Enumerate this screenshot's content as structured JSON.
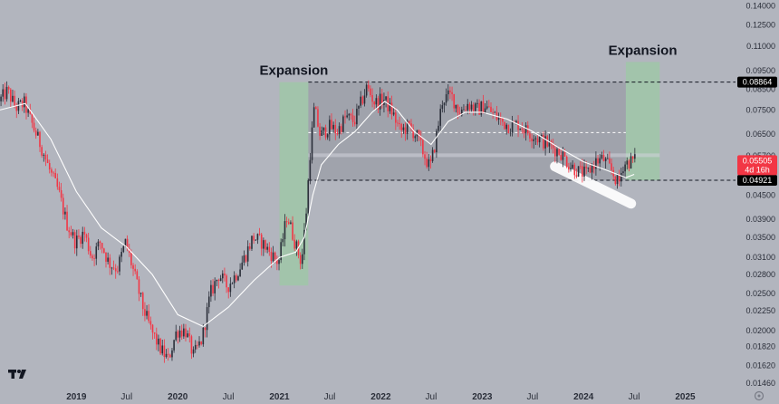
{
  "chart_data": {
    "type": "candlestick",
    "y_axis": {
      "scale": "log",
      "position": "right",
      "ylim": [
        0.0142,
        0.145
      ],
      "ticks": [
        "0.14000",
        "0.12500",
        "0.11000",
        "0.09500",
        "0.08500",
        "0.07500",
        "0.06500",
        "0.05700",
        "0.04500",
        "0.03900",
        "0.03500",
        "0.03100",
        "0.02800",
        "0.02500",
        "0.02250",
        "0.02000",
        "0.01820",
        "0.01620",
        "0.01460"
      ]
    },
    "x_axis": {
      "range": [
        "2018-04-01",
        "2025-07-01"
      ],
      "ticks": [
        {
          "date": "2019-01-01",
          "label": "2019",
          "year": true
        },
        {
          "date": "2019-07-01",
          "label": "Jul",
          "year": false
        },
        {
          "date": "2020-01-01",
          "label": "2020",
          "year": true
        },
        {
          "date": "2020-07-01",
          "label": "Jul",
          "year": false
        },
        {
          "date": "2021-01-01",
          "label": "2021",
          "year": true
        },
        {
          "date": "2021-07-01",
          "label": "Jul",
          "year": false
        },
        {
          "date": "2022-01-01",
          "label": "2022",
          "year": true
        },
        {
          "date": "2022-07-01",
          "label": "Jul",
          "year": false
        },
        {
          "date": "2023-01-01",
          "label": "2023",
          "year": true
        },
        {
          "date": "2023-07-01",
          "label": "Jul",
          "year": false
        },
        {
          "date": "2024-01-01",
          "label": "2024",
          "year": true
        },
        {
          "date": "2024-07-01",
          "label": "Jul",
          "year": false
        },
        {
          "date": "2025-01-01",
          "label": "2025",
          "year": true
        }
      ]
    },
    "anchors": [
      [
        "2018-04-01",
        0.079
      ],
      [
        "2018-05-01",
        0.084
      ],
      [
        "2018-06-01",
        0.076
      ],
      [
        "2018-07-01",
        0.078
      ],
      [
        "2018-08-01",
        0.068
      ],
      [
        "2018-09-01",
        0.06
      ],
      [
        "2018-10-01",
        0.052
      ],
      [
        "2018-11-01",
        0.046
      ],
      [
        "2018-12-01",
        0.038
      ],
      [
        "2019-01-01",
        0.034
      ],
      [
        "2019-02-01",
        0.036
      ],
      [
        "2019-03-01",
        0.031
      ],
      [
        "2019-04-01",
        0.034
      ],
      [
        "2019-05-01",
        0.03
      ],
      [
        "2019-06-01",
        0.029
      ],
      [
        "2019-07-01",
        0.034
      ],
      [
        "2019-08-01",
        0.028
      ],
      [
        "2019-09-01",
        0.023
      ],
      [
        "2019-10-01",
        0.02
      ],
      [
        "2019-11-01",
        0.018
      ],
      [
        "2019-12-01",
        0.0168
      ],
      [
        "2020-01-01",
        0.02
      ],
      [
        "2020-02-01",
        0.02
      ],
      [
        "2020-03-01",
        0.0172
      ],
      [
        "2020-04-01",
        0.019
      ],
      [
        "2020-05-01",
        0.025
      ],
      [
        "2020-06-01",
        0.028
      ],
      [
        "2020-07-01",
        0.026
      ],
      [
        "2020-08-01",
        0.028
      ],
      [
        "2020-09-01",
        0.031
      ],
      [
        "2020-10-01",
        0.035
      ],
      [
        "2020-11-01",
        0.034
      ],
      [
        "2020-12-01",
        0.032
      ],
      [
        "2021-01-01",
        0.03
      ],
      [
        "2021-02-01",
        0.04
      ],
      [
        "2021-03-01",
        0.034
      ],
      [
        "2021-03-25",
        0.03
      ],
      [
        "2021-04-10",
        0.04
      ],
      [
        "2021-04-25",
        0.058
      ],
      [
        "2021-05-10",
        0.076
      ],
      [
        "2021-06-01",
        0.064
      ],
      [
        "2021-07-01",
        0.068
      ],
      [
        "2021-08-01",
        0.066
      ],
      [
        "2021-09-01",
        0.072
      ],
      [
        "2021-10-01",
        0.07
      ],
      [
        "2021-11-15",
        0.086
      ],
      [
        "2021-12-15",
        0.078
      ],
      [
        "2022-01-15",
        0.08
      ],
      [
        "2022-02-15",
        0.074
      ],
      [
        "2022-03-15",
        0.066
      ],
      [
        "2022-04-15",
        0.068
      ],
      [
        "2022-05-15",
        0.064
      ],
      [
        "2022-06-15",
        0.056
      ],
      [
        "2022-07-01",
        0.053
      ],
      [
        "2022-07-20",
        0.062
      ],
      [
        "2022-08-15",
        0.08
      ],
      [
        "2022-09-15",
        0.082
      ],
      [
        "2022-10-15",
        0.074
      ],
      [
        "2022-11-15",
        0.078
      ],
      [
        "2022-12-15",
        0.075
      ],
      [
        "2023-01-15",
        0.077
      ],
      [
        "2023-02-15",
        0.073
      ],
      [
        "2023-03-15",
        0.07
      ],
      [
        "2023-04-15",
        0.068
      ],
      [
        "2023-05-15",
        0.069
      ],
      [
        "2023-06-15",
        0.066
      ],
      [
        "2023-07-15",
        0.064
      ],
      [
        "2023-08-15",
        0.062
      ],
      [
        "2023-09-15",
        0.06
      ],
      [
        "2023-10-15",
        0.058
      ],
      [
        "2023-11-15",
        0.054
      ],
      [
        "2023-12-15",
        0.052
      ],
      [
        "2024-01-15",
        0.051
      ],
      [
        "2024-02-15",
        0.055
      ],
      [
        "2024-03-15",
        0.056
      ],
      [
        "2024-04-15",
        0.052
      ],
      [
        "2024-05-10",
        0.048
      ],
      [
        "2024-05-25",
        0.054
      ],
      [
        "2024-06-15",
        0.055
      ],
      [
        "2024-07-01",
        0.0555
      ]
    ],
    "ma_anchors": [
      [
        "2018-04-01",
        0.075
      ],
      [
        "2018-07-01",
        0.078
      ],
      [
        "2018-10-01",
        0.063
      ],
      [
        "2019-01-01",
        0.046
      ],
      [
        "2019-04-01",
        0.037
      ],
      [
        "2019-07-01",
        0.033
      ],
      [
        "2019-10-01",
        0.028
      ],
      [
        "2020-01-01",
        0.022
      ],
      [
        "2020-04-01",
        0.0205
      ],
      [
        "2020-07-01",
        0.023
      ],
      [
        "2020-10-01",
        0.027
      ],
      [
        "2021-01-01",
        0.031
      ],
      [
        "2021-03-01",
        0.032
      ],
      [
        "2021-04-01",
        0.035
      ],
      [
        "2021-05-01",
        0.045
      ],
      [
        "2021-06-01",
        0.054
      ],
      [
        "2021-08-01",
        0.061
      ],
      [
        "2021-10-01",
        0.066
      ],
      [
        "2021-12-01",
        0.074
      ],
      [
        "2022-01-15",
        0.079
      ],
      [
        "2022-03-01",
        0.075
      ],
      [
        "2022-05-01",
        0.066
      ],
      [
        "2022-07-01",
        0.061
      ],
      [
        "2022-09-01",
        0.07
      ],
      [
        "2022-11-01",
        0.074
      ],
      [
        "2023-01-01",
        0.074
      ],
      [
        "2023-04-01",
        0.071
      ],
      [
        "2023-07-01",
        0.066
      ],
      [
        "2023-10-01",
        0.06
      ],
      [
        "2024-01-01",
        0.055
      ],
      [
        "2024-04-01",
        0.052
      ],
      [
        "2024-06-01",
        0.05
      ],
      [
        "2024-07-01",
        0.051
      ]
    ],
    "range_box": {
      "x0": "2021-04-15",
      "x1": "2024-06-01",
      "y_low": 0.04921,
      "y_high": 0.08864,
      "mid": 0.0655
    },
    "expansion_zones": [
      {
        "x0": "2021-01-01",
        "x1": "2021-04-15",
        "y_low": 0.0262,
        "y_high": 0.0886,
        "label": "Expansion"
      },
      {
        "x0": "2024-06-01",
        "x1": "2024-10-01",
        "y_low": 0.0492,
        "y_high": 0.1,
        "label": "Expansion"
      }
    ],
    "horizontal_levels": [
      {
        "value": 0.08864,
        "label": "0.08864"
      },
      {
        "value": 0.04921,
        "label": "0.04921"
      }
    ],
    "last_price": {
      "value": 0.05505,
      "label": "0.05505",
      "countdown": "4d 16h",
      "color": "#f23645"
    },
    "highlight_stroke": {
      "x0": "2023-09-20",
      "y0": 0.0535,
      "x1": "2024-06-20",
      "y1": 0.0428
    },
    "colors": {
      "background": "#b2b5be",
      "up": "#2a2e39",
      "down": "#f23645",
      "moving_average": "#ffffff",
      "expansion_zone": "#9cc9a4",
      "range_box": "#8a8d96",
      "level_line": "#131722",
      "axis_text": "#2a2e39"
    }
  },
  "branding": {
    "logo": "TV",
    "settings_icon": "gear-icon"
  }
}
